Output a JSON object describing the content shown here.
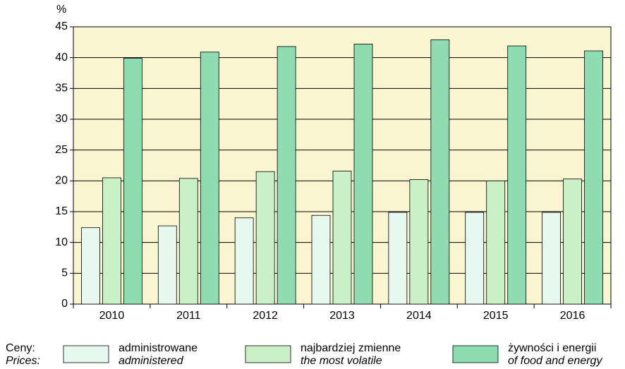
{
  "chart_data": {
    "type": "bar",
    "y_label": "%",
    "categories": [
      "2010",
      "2011",
      "2012",
      "2013",
      "2014",
      "2015",
      "2016"
    ],
    "series": [
      {
        "name": "administrowane",
        "name_en": "administered",
        "color": "#e6f8f0",
        "values": [
          12.4,
          12.7,
          14.0,
          14.4,
          14.9,
          14.9,
          14.9
        ]
      },
      {
        "name": "najbardziej zmienne",
        "name_en": "the most volatile",
        "color": "#c9f0c6",
        "values": [
          20.5,
          20.4,
          21.5,
          21.6,
          20.2,
          20.0,
          20.3
        ]
      },
      {
        "name": "żywności i energii",
        "name_en": "of food and energy",
        "color": "#8fdcb2",
        "values": [
          39.9,
          40.9,
          41.8,
          42.2,
          42.9,
          41.9,
          41.1
        ]
      }
    ],
    "legend_title": "Ceny:",
    "legend_title_en": "Prices:",
    "ylim": [
      0,
      45
    ],
    "yticks": [
      0,
      5,
      10,
      15,
      20,
      25,
      30,
      35,
      40,
      45
    ],
    "grid": true,
    "background": "#fcf5d2"
  }
}
